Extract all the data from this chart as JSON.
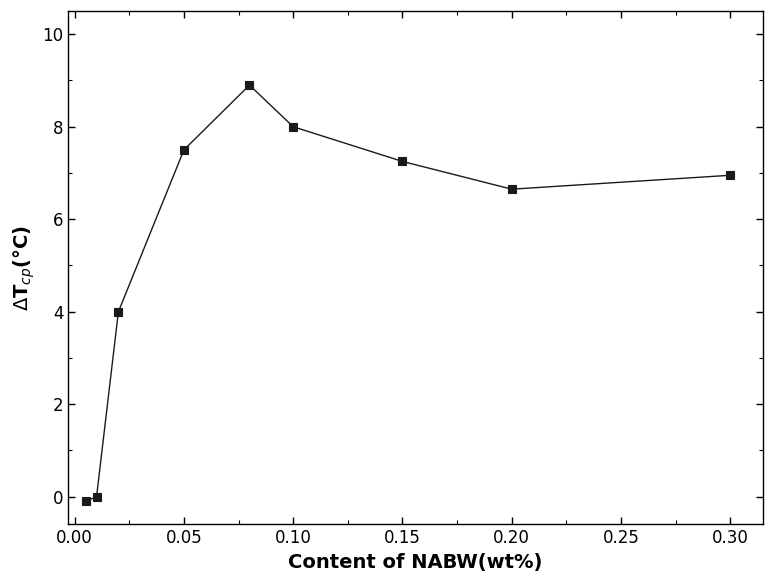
{
  "x": [
    0.005,
    0.01,
    0.02,
    0.05,
    0.08,
    0.1,
    0.15,
    0.2,
    0.3
  ],
  "y": [
    -0.1,
    0.0,
    4.0,
    7.5,
    8.9,
    8.0,
    7.25,
    6.65,
    6.95
  ],
  "xlabel": "Content of NABW(wt%)",
  "ylabel": "ΔT$_{cp}$(°C)",
  "xlim": [
    -0.003,
    0.315
  ],
  "ylim": [
    -0.6,
    10.5
  ],
  "xticks": [
    0.0,
    0.05,
    0.1,
    0.15,
    0.2,
    0.25,
    0.3
  ],
  "yticks": [
    0,
    2,
    4,
    6,
    8,
    10
  ],
  "line_color": "#1a1a1a",
  "marker_color": "#1a1a1a",
  "marker_style": "s",
  "marker_size": 6,
  "marker_edge_width": 0.8,
  "line_width": 1.0,
  "xlabel_fontsize": 14,
  "ylabel_fontsize": 14,
  "tick_fontsize": 12,
  "background_color": "#ffffff"
}
